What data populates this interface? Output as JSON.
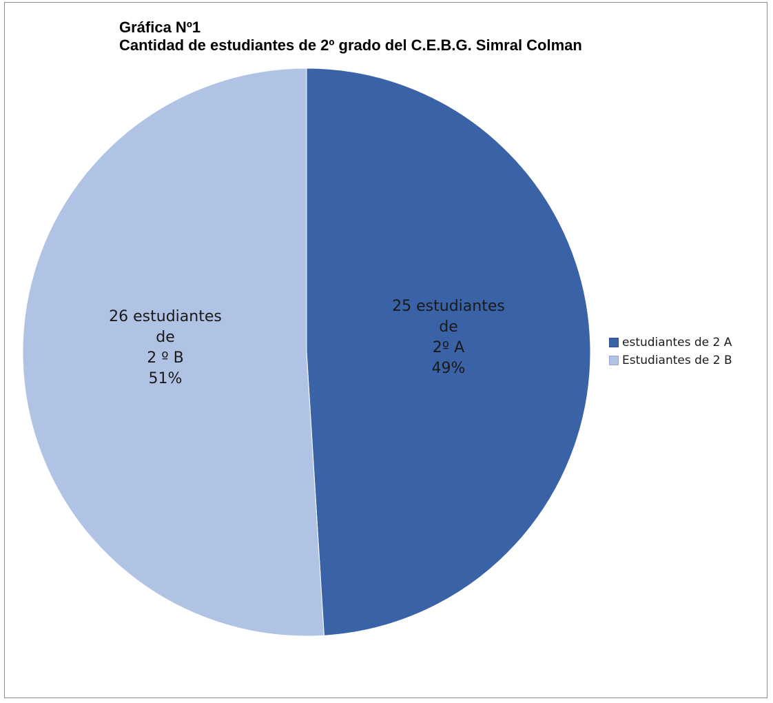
{
  "chart_data": {
    "type": "pie",
    "title": "Gráfica Nº1",
    "subtitle": "Cantidad de estudiantes de 2º grado del C.E.B.G. Simral Colman",
    "slices": [
      {
        "name": "estudiantes de 2 A",
        "value": 25,
        "percent": 49,
        "color": "#3a62a7",
        "label_lines": [
          "25 estudiantes",
          "de",
          "2º A",
          "49%"
        ]
      },
      {
        "name": "Estudiantes de 2 B",
        "value": 26,
        "percent": 51,
        "color": "#b0c3e4",
        "label_lines": [
          "26 estudiantes",
          "de",
          "2 º B",
          "51%"
        ]
      }
    ],
    "legend_position": "right",
    "start_angle": "12 o'clock, clockwise"
  }
}
